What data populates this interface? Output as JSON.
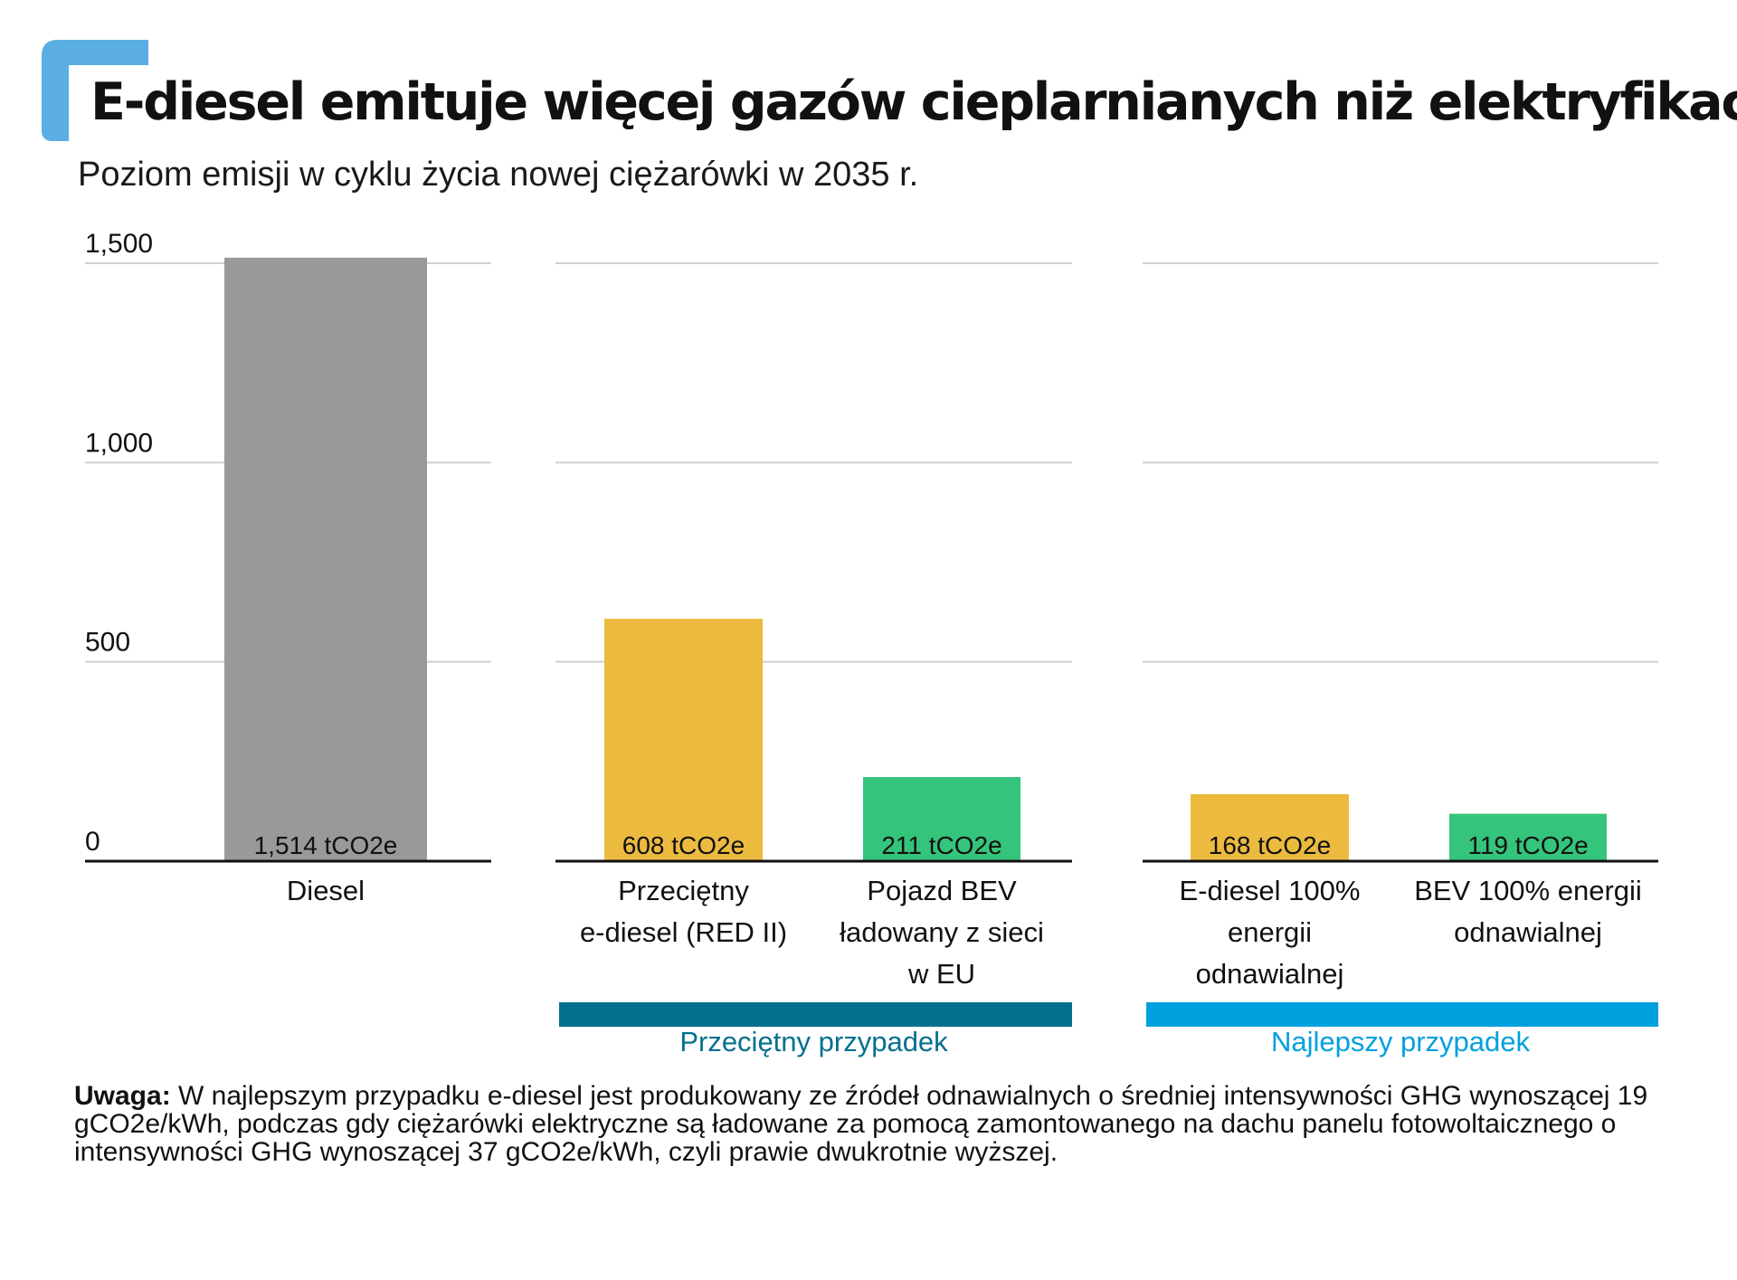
{
  "header": {
    "title": "E-diesel emituje więcej gazów cieplarnianych niż elektryfikacja",
    "subtitle": "Poziom emisji w cyklu życia nowej ciężarówki w 2035 r."
  },
  "colors": {
    "accent_logo": "#5aaee2",
    "diesel": "#999999",
    "e_diesel": "#ecba3f",
    "bev": "#35c47b",
    "group_average": "#03708f",
    "group_best": "#00a0df",
    "gridline": "#d0d0d0",
    "baseline": "#111111"
  },
  "chart_data": {
    "type": "bar",
    "ylim": [
      0,
      1500
    ],
    "yticks": [
      0,
      500,
      1000,
      1500
    ],
    "ytick_labels": [
      "0",
      "500",
      "1,000",
      "1,500"
    ],
    "grid": true,
    "value_unit": "tCO2e",
    "panels": [
      {
        "group_label": "",
        "bars": [
          {
            "category": [
              "Diesel"
            ],
            "value": 1514,
            "label": "1,514 tCO2e",
            "color_key": "diesel"
          }
        ]
      },
      {
        "group_label": "Przeciętny przypadek",
        "group_color_key": "group_average",
        "bars": [
          {
            "category": [
              "Przeciętny",
              "e-diesel (RED II)"
            ],
            "value": 608,
            "label": "608 tCO2e",
            "color_key": "e_diesel"
          },
          {
            "category": [
              "Pojazd BEV",
              "ładowany z sieci",
              "w EU"
            ],
            "value": 211,
            "label": "211 tCO2e",
            "color_key": "bev"
          }
        ]
      },
      {
        "group_label": "Najlepszy przypadek",
        "group_color_key": "group_best",
        "bars": [
          {
            "category": [
              "E-diesel 100%",
              "energii",
              "odnawialnej"
            ],
            "value": 168,
            "label": "168 tCO2e",
            "color_key": "e_diesel"
          },
          {
            "category": [
              "BEV 100% energii",
              "odnawialnej"
            ],
            "value": 119,
            "label": "119 tCO2e",
            "color_key": "bev"
          }
        ]
      }
    ]
  },
  "note": {
    "label": "Uwaga:",
    "text": "W najlepszym przypadku e-diesel jest produkowany ze źródeł odnawialnych o średniej intensywności GHG wynoszącej 19 gCO2e/kWh, podczas gdy ciężarówki elektryczne są ładowane za pomocą zamontowanego na dachu panelu fotowoltaicznego o intensywności GHG wynoszącej 37 gCO2e/kWh, czyli prawie dwukrotnie wyższej."
  }
}
